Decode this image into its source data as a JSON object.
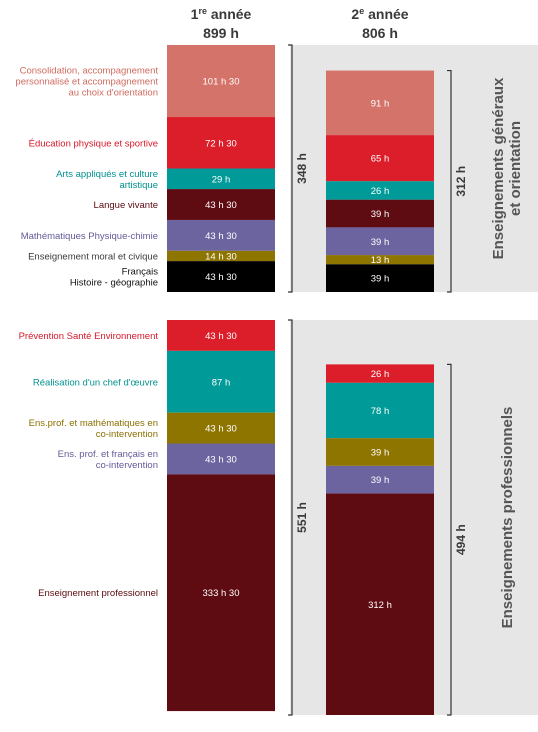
{
  "chart_data": {
    "type": "bar",
    "subtype": "stacked",
    "groups": [
      {
        "label": "Enseignements généraux et orientation",
        "total_label": "348 h",
        "total_label_2": "312 h",
        "categories": [
          {
            "name": "Consolidation, accompagnement personnalisé et accompagnement au choix d'orientation",
            "color": "#d4736a",
            "label_color": "#cf6b5f",
            "y1": 101.5,
            "y1_label": "101 h 30",
            "y2": 91,
            "y2_label": "91 h"
          },
          {
            "name": "Éducation physique et sportive",
            "color": "#dc1e2b",
            "label_color": "#d7172a",
            "y1": 72.5,
            "y1_label": "72 h 30",
            "y2": 65,
            "y2_label": "65 h"
          },
          {
            "name": "Arts appliqués et culture artistique",
            "color": "#009a98",
            "label_color": "#00918f",
            "y1": 29,
            "y1_label": "29 h",
            "y2": 26,
            "y2_label": "26 h"
          },
          {
            "name": "Langue vivante",
            "color": "#5f0b12",
            "label_color": "#5a0a10",
            "y1": 43.5,
            "y1_label": "43 h 30",
            "y2": 39,
            "y2_label": "39 h"
          },
          {
            "name": "Mathématiques Physique-chimie",
            "color": "#6c649f",
            "label_color": "#625b99",
            "y1": 43.5,
            "y1_label": "43 h 30",
            "y2": 39,
            "y2_label": "39 h"
          },
          {
            "name": "Enseignement moral et civique",
            "color": "#8e7500",
            "label_color": "#3a3a3a",
            "y1": 14.5,
            "y1_label": "14 h 30",
            "y2": 13,
            "y2_label": "13 h"
          },
          {
            "name": "Français\nHistoire - géographie",
            "color": "#000000",
            "label_color": "#111111",
            "y1": 43.5,
            "y1_label": "43 h 30",
            "y2": 39,
            "y2_label": "39 h"
          }
        ]
      },
      {
        "label": "Enseignements professionnels",
        "total_label": "551 h",
        "total_label_2": "494 h",
        "categories": [
          {
            "name": "Prévention Santé Environnement",
            "color": "#dc1e2b",
            "label_color": "#d7172a",
            "y1": 43.5,
            "y1_label": "43 h 30",
            "y2": 26,
            "y2_label": "26 h"
          },
          {
            "name": "Réalisation d'un chef d'œuvre",
            "color": "#009a98",
            "label_color": "#00918f",
            "y1": 87,
            "y1_label": "87 h",
            "y2": 78,
            "y2_label": "78 h"
          },
          {
            "name": "Ens.prof. et mathématiques en co-intervention",
            "color": "#8e7500",
            "label_color": "#8a7000",
            "y1": 43.5,
            "y1_label": "43 h 30",
            "y2": 39,
            "y2_label": "39 h"
          },
          {
            "name": "Ens. prof. et français en co-intervention",
            "color": "#6c649f",
            "label_color": "#625b99",
            "y1": 43.5,
            "y1_label": "43 h 30",
            "y2": 39,
            "y2_label": "39 h"
          },
          {
            "name": "Enseignement professionnel",
            "color": "#5f0b12",
            "label_color": "#5a0a10",
            "y1": 333.5,
            "y1_label": "333 h 30",
            "y2": 312,
            "y2_label": "312 h"
          }
        ]
      }
    ],
    "columns": [
      {
        "title_main": "1",
        "title_sup": "re",
        "title_rest": " année",
        "total": "899 h"
      },
      {
        "title_main": "2",
        "title_sup": "e",
        "title_rest": " année",
        "total": "806 h"
      }
    ],
    "colors": {
      "band": "#e6e6e6",
      "bar_text": "#ffffff",
      "title": "#3a3a3a",
      "side_label": "#555555"
    }
  }
}
